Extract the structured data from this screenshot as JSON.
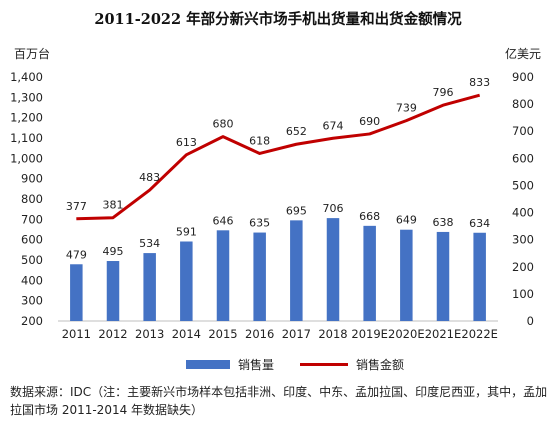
{
  "chart_data": {
    "type": "bar+line",
    "title": "2011-2022 年部分新兴市场手机出货量和出货金额情况",
    "left_axis_unit": "百万台",
    "right_axis_unit": "亿美元",
    "left_ylim": [
      200,
      1400
    ],
    "left_ticks": [
      "200",
      "300",
      "400",
      "500",
      "600",
      "700",
      "800",
      "900",
      "1,000",
      "1,100",
      "1,200",
      "1,300",
      "1,400"
    ],
    "right_ylim": [
      0,
      900
    ],
    "right_ticks": [
      "0",
      "100",
      "200",
      "300",
      "400",
      "500",
      "600",
      "700",
      "800",
      "900"
    ],
    "categories": [
      "2011",
      "2012",
      "2013",
      "2014",
      "2015",
      "2016",
      "2017",
      "2018",
      "2019E",
      "2020E",
      "2021E",
      "2022E"
    ],
    "series": [
      {
        "name": "销售量",
        "type": "bar",
        "axis": "left",
        "color": "#4472C4",
        "values": [
          479,
          495,
          534,
          591,
          646,
          635,
          695,
          706,
          668,
          649,
          638,
          634
        ]
      },
      {
        "name": "销售金额",
        "type": "line",
        "axis": "right",
        "color": "#C00000",
        "values": [
          377,
          381,
          483,
          613,
          680,
          618,
          652,
          674,
          690,
          739,
          796,
          833
        ]
      }
    ],
    "grid": false,
    "legend_position": "bottom"
  },
  "source_note": "数据来源：IDC（注：主要新兴市场样本包括非洲、印度、中东、孟加拉国、印度尼西亚，其中，孟加拉国市场 2011-2014 年数据缺失）"
}
